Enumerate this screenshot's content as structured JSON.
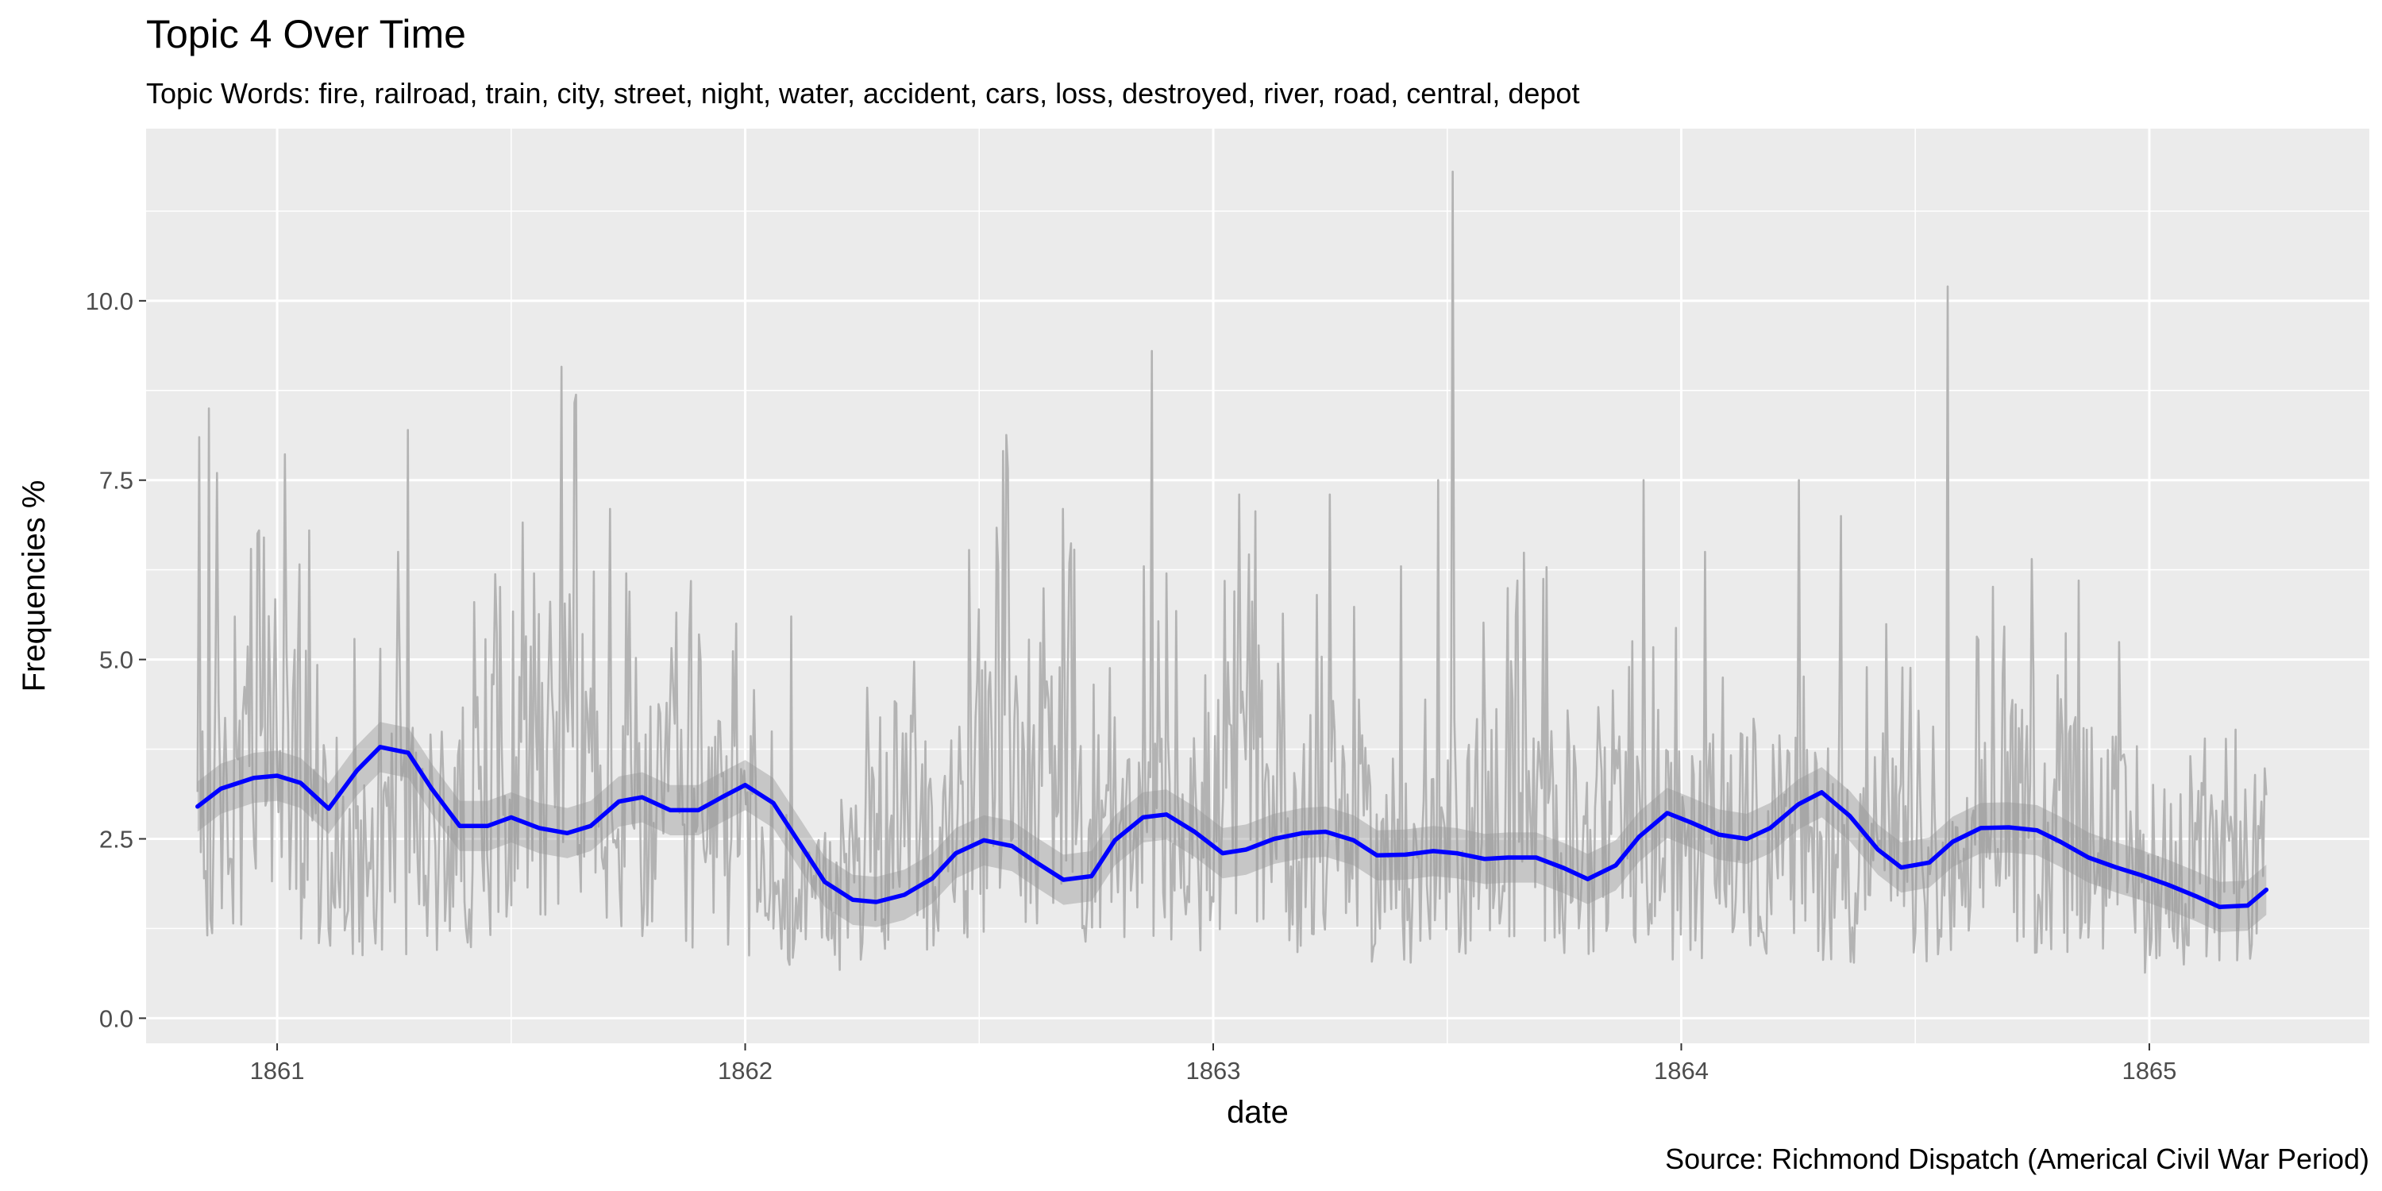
{
  "chart_data": {
    "type": "line",
    "title": "Topic 4 Over Time",
    "subtitle": "Topic Words: fire, railroad, train, city, street, night, water, accident, cars, loss, destroyed, river, road, central, depot",
    "xlabel": "date",
    "ylabel": "Frequencies %",
    "caption": "Source: Richmond Dispatch (Americal Civil War Period)",
    "xlim": [
      1860.72,
      1865.47
    ],
    "ylim": [
      -0.35,
      12.4
    ],
    "x_ticks": [
      {
        "value": 1861,
        "label": "1861"
      },
      {
        "value": 1862,
        "label": "1862"
      },
      {
        "value": 1863,
        "label": "1863"
      },
      {
        "value": 1864,
        "label": "1864"
      },
      {
        "value": 1865,
        "label": "1865"
      }
    ],
    "y_ticks": [
      {
        "value": 0,
        "label": "0.0"
      },
      {
        "value": 2.5,
        "label": "2.5"
      },
      {
        "value": 5,
        "label": "5.0"
      },
      {
        "value": 7.5,
        "label": "7.5"
      },
      {
        "value": 10,
        "label": "10.0"
      }
    ],
    "grid": true,
    "background": "#ebebeb",
    "colors": {
      "raw": "#b3b3b3",
      "smooth": "#0000ff",
      "band": "#999999"
    },
    "series": [
      {
        "kind": "raw",
        "x_start": 1860.83,
        "x_end": 1865.25,
        "baseline": [
          2.0,
          2.7,
          3.9,
          2.5,
          2.3,
          2.6,
          2.4,
          2.7,
          3.3,
          4.1,
          3.7,
          2.6,
          2.7,
          2.6,
          2.5,
          1.7,
          1.4,
          1.9,
          2.5,
          2.5,
          2.6,
          3.5,
          3.5,
          2.7,
          2.1,
          2.4,
          2.4,
          3.1,
          3.3,
          2.3,
          2.6,
          2.0,
          2.0,
          2.3,
          2.9,
          2.8,
          2.2,
          2.4,
          2.3,
          2.3,
          2.5,
          2.4,
          2.4,
          2.1,
          2.4,
          1.9,
          1.7,
          3.0,
          2.4,
          2.6,
          2.5,
          1.6,
          2.1,
          1.8,
          2.2
        ],
        "peaks": [
          {
            "x": 1860.835,
            "y": 8.1
          },
          {
            "x": 1860.855,
            "y": 8.5
          },
          {
            "x": 1860.87,
            "y": 7.6
          },
          {
            "x": 1860.96,
            "y": 6.8
          },
          {
            "x": 1861.07,
            "y": 6.8
          },
          {
            "x": 1861.26,
            "y": 6.5
          },
          {
            "x": 1861.28,
            "y": 8.2
          },
          {
            "x": 1861.42,
            "y": 5.8
          },
          {
            "x": 1861.55,
            "y": 6.2
          },
          {
            "x": 1861.71,
            "y": 7.1
          },
          {
            "x": 1861.98,
            "y": 5.5
          },
          {
            "x": 1862.1,
            "y": 5.6
          },
          {
            "x": 1862.5,
            "y": 5.7
          },
          {
            "x": 1862.85,
            "y": 6.3
          },
          {
            "x": 1862.87,
            "y": 9.3
          },
          {
            "x": 1862.9,
            "y": 6.2
          },
          {
            "x": 1863.22,
            "y": 5.9
          },
          {
            "x": 1863.25,
            "y": 7.3
          },
          {
            "x": 1863.4,
            "y": 6.3
          },
          {
            "x": 1863.48,
            "y": 7.5
          },
          {
            "x": 1863.51,
            "y": 11.8
          },
          {
            "x": 1863.65,
            "y": 6.1
          },
          {
            "x": 1863.92,
            "y": 7.5
          },
          {
            "x": 1864.05,
            "y": 6.5
          },
          {
            "x": 1864.25,
            "y": 7.5
          },
          {
            "x": 1864.34,
            "y": 7.0
          },
          {
            "x": 1864.57,
            "y": 10.2
          },
          {
            "x": 1864.75,
            "y": 6.4
          },
          {
            "x": 1864.85,
            "y": 6.1
          },
          {
            "x": 1865.12,
            "y": 3.9
          }
        ]
      },
      {
        "kind": "smooth",
        "x": [
          1860.83,
          1860.88,
          1860.95,
          1861.0,
          1861.05,
          1861.11,
          1861.17,
          1861.22,
          1861.28,
          1861.33,
          1861.39,
          1861.45,
          1861.5,
          1861.56,
          1861.62,
          1861.67,
          1861.73,
          1861.78,
          1861.84,
          1861.9,
          1861.95,
          1862.0,
          1862.06,
          1862.12,
          1862.17,
          1862.23,
          1862.28,
          1862.34,
          1862.4,
          1862.45,
          1862.51,
          1862.57,
          1862.62,
          1862.68,
          1862.74,
          1862.79,
          1862.85,
          1862.9,
          1862.96,
          1863.02,
          1863.07,
          1863.13,
          1863.19,
          1863.24,
          1863.3,
          1863.35,
          1863.41,
          1863.47,
          1863.52,
          1863.58,
          1863.63,
          1863.69,
          1863.75,
          1863.8,
          1863.86,
          1863.91,
          1863.97,
          1864.02,
          1864.08,
          1864.14,
          1864.19,
          1864.25,
          1864.3,
          1864.36,
          1864.42,
          1864.47,
          1864.53,
          1864.58,
          1864.64,
          1864.7,
          1864.76,
          1864.81,
          1864.87,
          1864.93,
          1864.98,
          1865.04,
          1865.1,
          1865.15,
          1865.21,
          1865.25
        ],
        "y": [
          2.95,
          3.2,
          3.35,
          3.38,
          3.28,
          2.92,
          3.45,
          3.78,
          3.7,
          3.2,
          2.68,
          2.68,
          2.8,
          2.65,
          2.58,
          2.68,
          3.02,
          3.08,
          2.9,
          2.9,
          3.08,
          3.25,
          3.0,
          2.4,
          1.9,
          1.65,
          1.62,
          1.72,
          1.95,
          2.3,
          2.48,
          2.4,
          2.18,
          1.93,
          1.98,
          2.48,
          2.8,
          2.84,
          2.6,
          2.3,
          2.35,
          2.5,
          2.58,
          2.6,
          2.48,
          2.27,
          2.28,
          2.33,
          2.3,
          2.22,
          2.24,
          2.24,
          2.09,
          1.94,
          2.13,
          2.53,
          2.86,
          2.73,
          2.56,
          2.5,
          2.65,
          2.98,
          3.15,
          2.82,
          2.35,
          2.1,
          2.17,
          2.46,
          2.65,
          2.66,
          2.62,
          2.46,
          2.24,
          2.1,
          2.0,
          1.86,
          1.7,
          1.55,
          1.57,
          1.79
        ],
        "band_halfwidth": 0.35
      }
    ]
  }
}
